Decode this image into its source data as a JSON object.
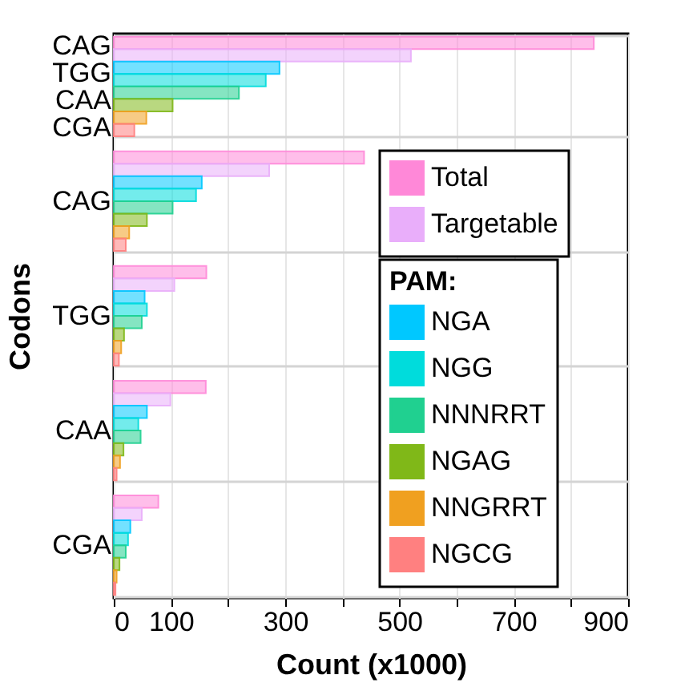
{
  "chart_data": {
    "type": "bar",
    "orientation": "horizontal",
    "xlabel": "Count (x1000)",
    "ylabel": "Codons",
    "legend_title": "PAM:",
    "legend": "right",
    "grid": true,
    "categories": [
      "CAG\nTGG\nCAA\nCGA",
      "CAG",
      "TGG",
      "CAA",
      "CGA"
    ],
    "xlim": [
      0,
      900
    ],
    "xticks": [
      0,
      100,
      {
        "value": 200,
        "label": null
      },
      300,
      {
        "value": 400,
        "label": null
      },
      500,
      {
        "value": 600,
        "label": null
      },
      700,
      {
        "value": 800,
        "label": null
      },
      900
    ],
    "series": [
      {
        "name": "Total",
        "color": "#ff88d8",
        "values": [
          840,
          438,
          162,
          161,
          78
        ]
      },
      {
        "name": "Targetable",
        "color": "#e9aefa",
        "values": [
          520,
          272,
          106,
          99,
          49
        ]
      },
      {
        "name": "NGA",
        "color": "#00c8ff",
        "values": [
          290,
          154,
          54,
          58,
          29
        ]
      },
      {
        "name": "NGG",
        "color": "#00dcdc",
        "values": [
          266,
          144,
          58,
          43,
          25
        ]
      },
      {
        "name": "NNNRRT",
        "color": "#20d090",
        "values": [
          219,
          103,
          49,
          47,
          21
        ]
      },
      {
        "name": "NGAG",
        "color": "#80b818",
        "values": [
          103,
          58,
          18,
          17,
          10
        ]
      },
      {
        "name": "NNGRRT",
        "color": "#f0a020",
        "values": [
          57,
          27,
          13,
          11,
          5
        ]
      },
      {
        "name": "NGCG",
        "color": "#ff8080",
        "values": [
          36,
          21,
          9,
          5,
          3
        ]
      }
    ]
  }
}
